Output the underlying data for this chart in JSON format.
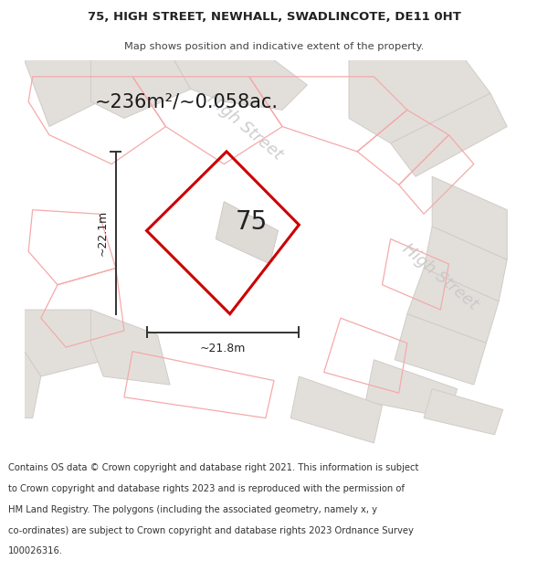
{
  "title_line1": "75, HIGH STREET, NEWHALL, SWADLINCOTE, DE11 0HT",
  "title_line2": "Map shows position and indicative extent of the property.",
  "area_text": "~236m²/~0.058ac.",
  "label_75": "75",
  "dim_height": "~22.1m",
  "dim_width": "~21.8m",
  "footer_lines": [
    "Contains OS data © Crown copyright and database right 2021. This information is subject",
    "to Crown copyright and database rights 2023 and is reproduced with the permission of",
    "HM Land Registry. The polygons (including the associated geometry, namely x, y",
    "co-ordinates) are subject to Crown copyright and database rights 2023 Ordnance Survey",
    "100026316."
  ],
  "bg_color": "#f0eeeb",
  "red_poly_color": "#cc0000",
  "pink_line_color": "#f5aaaa",
  "dim_line_color": "#333333",
  "building_fill": "#e2dfdb",
  "building_edge": "#d0ccc8",
  "road_fill": "#e8e5e1",
  "street_label_color": "#c8c8c8",
  "title_color": "#222222",
  "subtitle_color": "#444444",
  "footer_color": "#333333"
}
